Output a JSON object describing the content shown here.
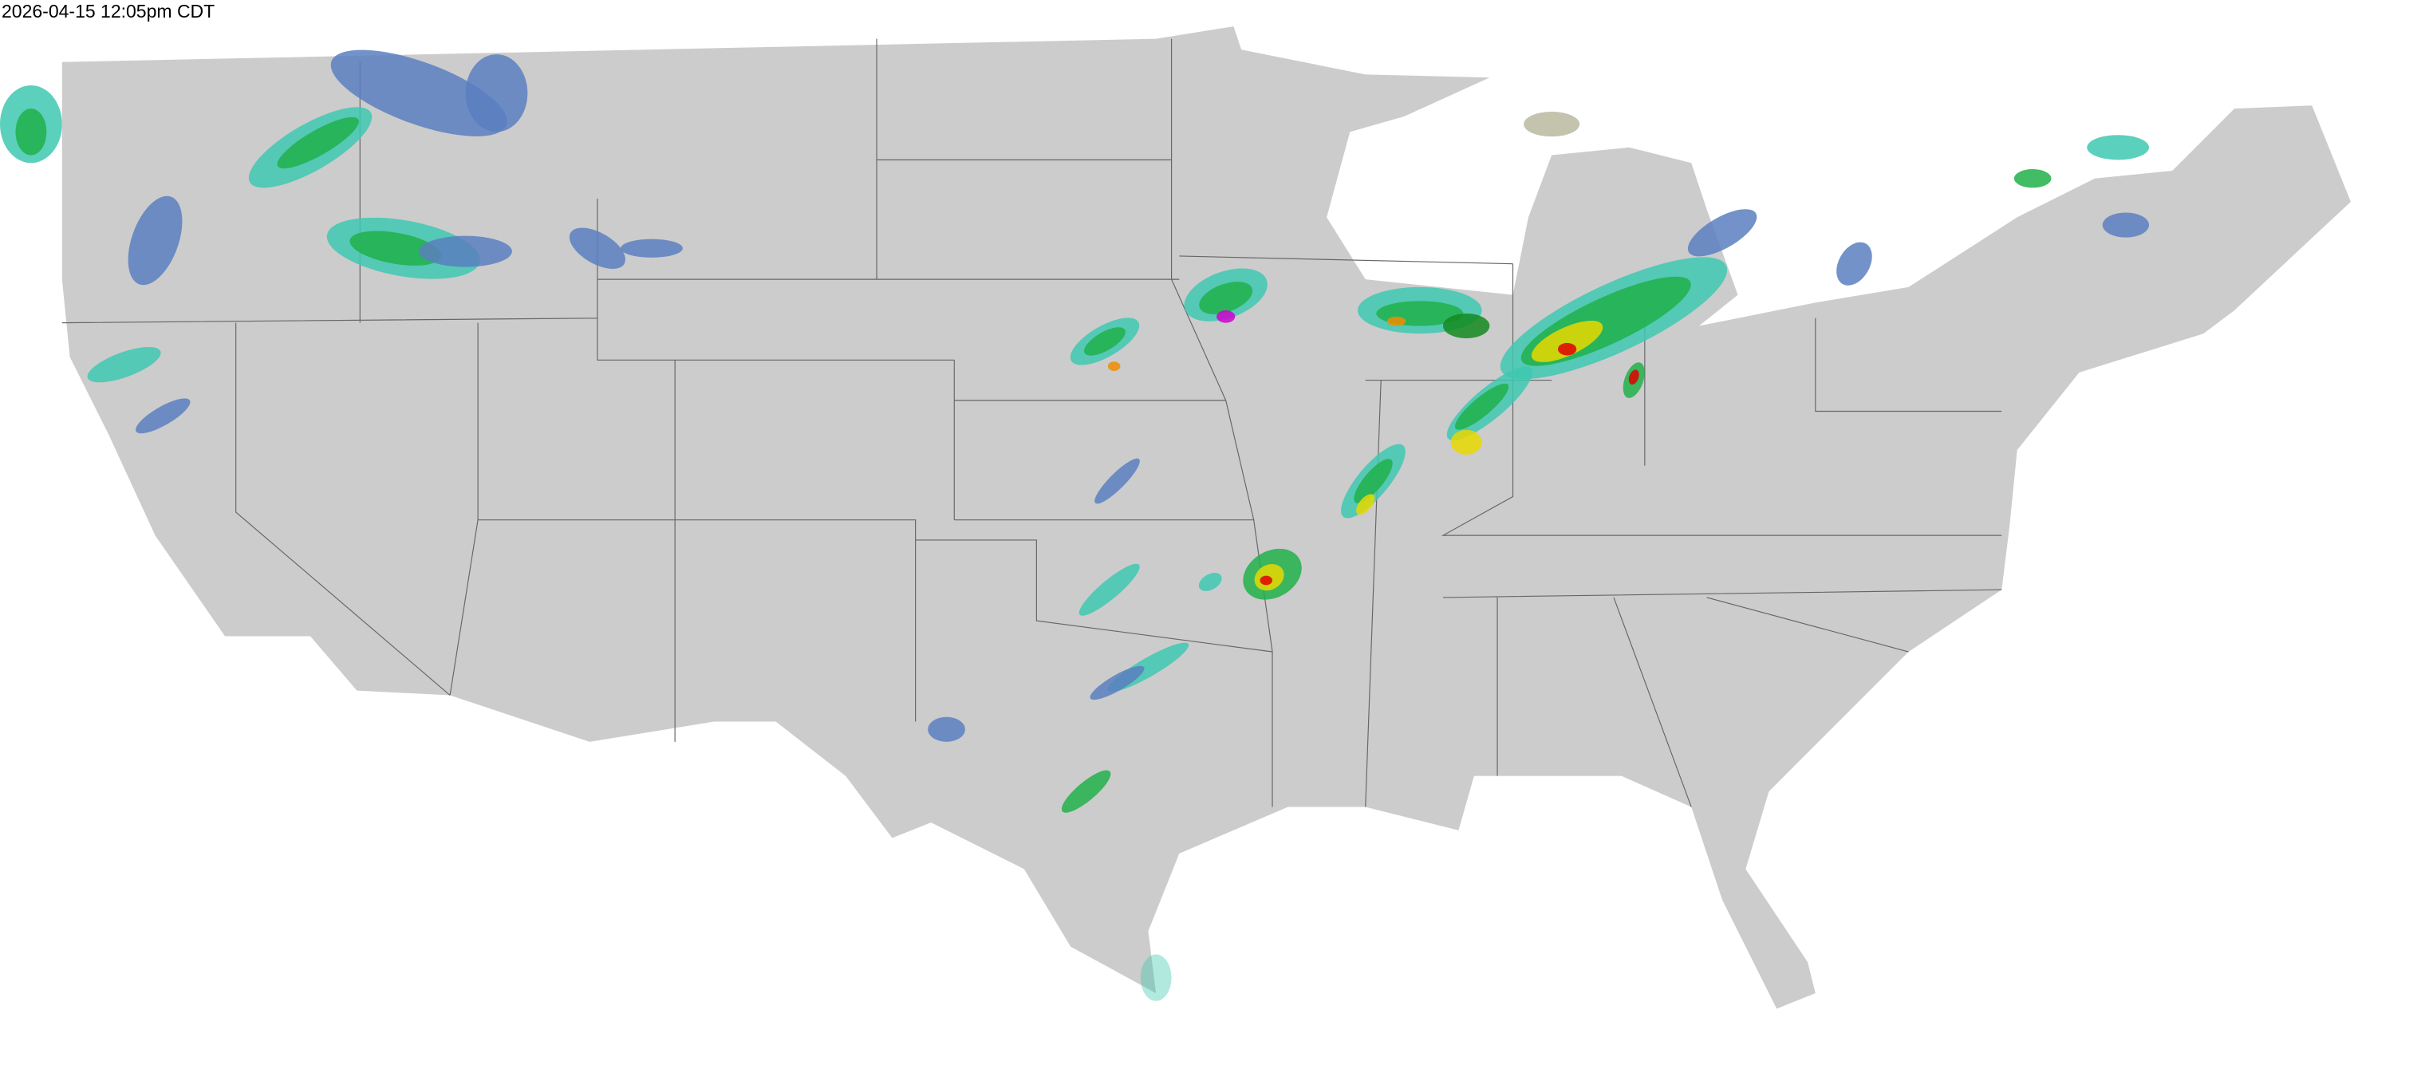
{
  "timestamp": "2026-04-15 12:05pm CDT",
  "map": {
    "land_color": "#cccccc",
    "border_color": "#666666",
    "water_color": "#ffffff",
    "radar_colors": {
      "light": "#5a7fc0",
      "teal": "#3ec8b0",
      "green": "#21b04a",
      "dark_green": "#138a1e",
      "yellow": "#e8d800",
      "orange": "#f08c00",
      "red": "#e00000",
      "magenta": "#d000d0"
    }
  }
}
